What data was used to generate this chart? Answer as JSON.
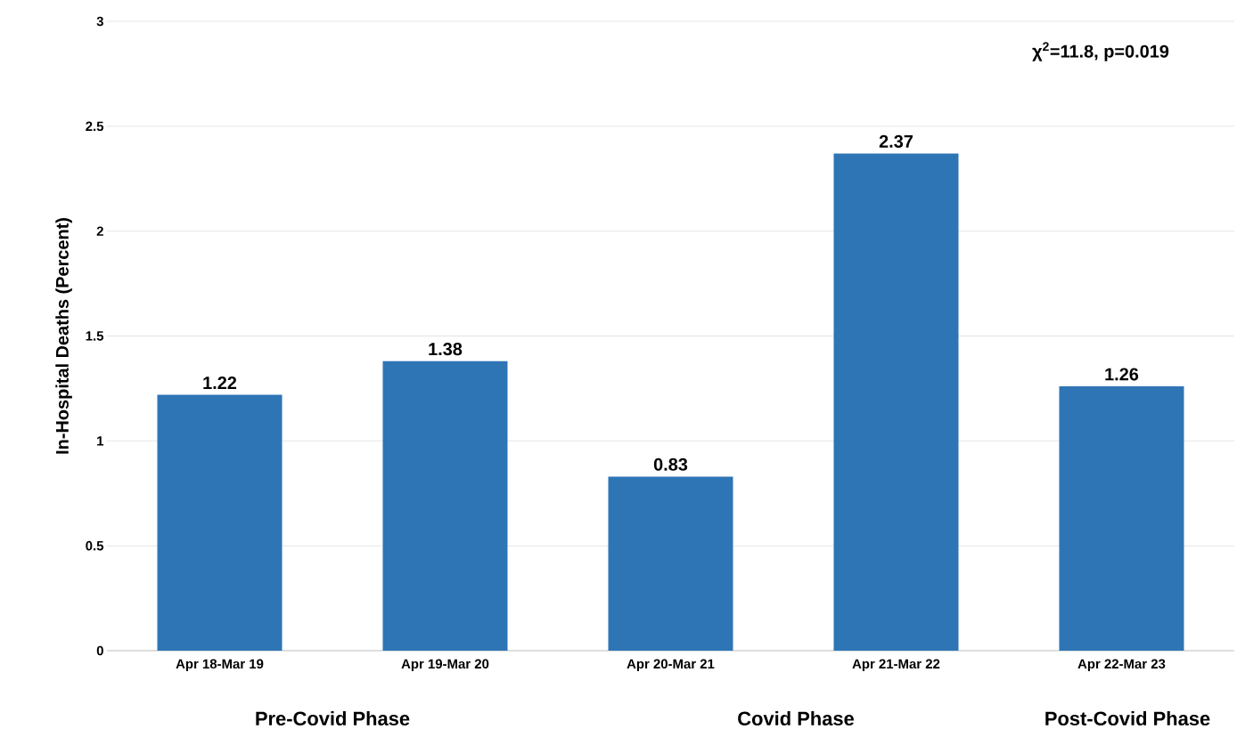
{
  "chart_data": {
    "type": "bar",
    "ylabel": "In-Hospital Deaths (Percent)",
    "categories": [
      "Apr 18-Mar 19",
      "Apr 19-Mar 20",
      "Apr 20-Mar 21",
      "Apr 21-Mar 22",
      "Apr 22-Mar 23"
    ],
    "values": [
      1.22,
      1.38,
      0.83,
      2.37,
      1.26
    ],
    "color": "#2e75b6",
    "ylim": [
      0,
      3
    ],
    "yticks": [
      0,
      0.5,
      1,
      1.5,
      2,
      2.5,
      3
    ],
    "grid": "y",
    "data_labels": true,
    "annotations": [
      "χ$^{2}$=11.8, p=0.019",
      "Pre-Covid Phase",
      "Covid Phase",
      "Post-Covid Phase"
    ]
  }
}
